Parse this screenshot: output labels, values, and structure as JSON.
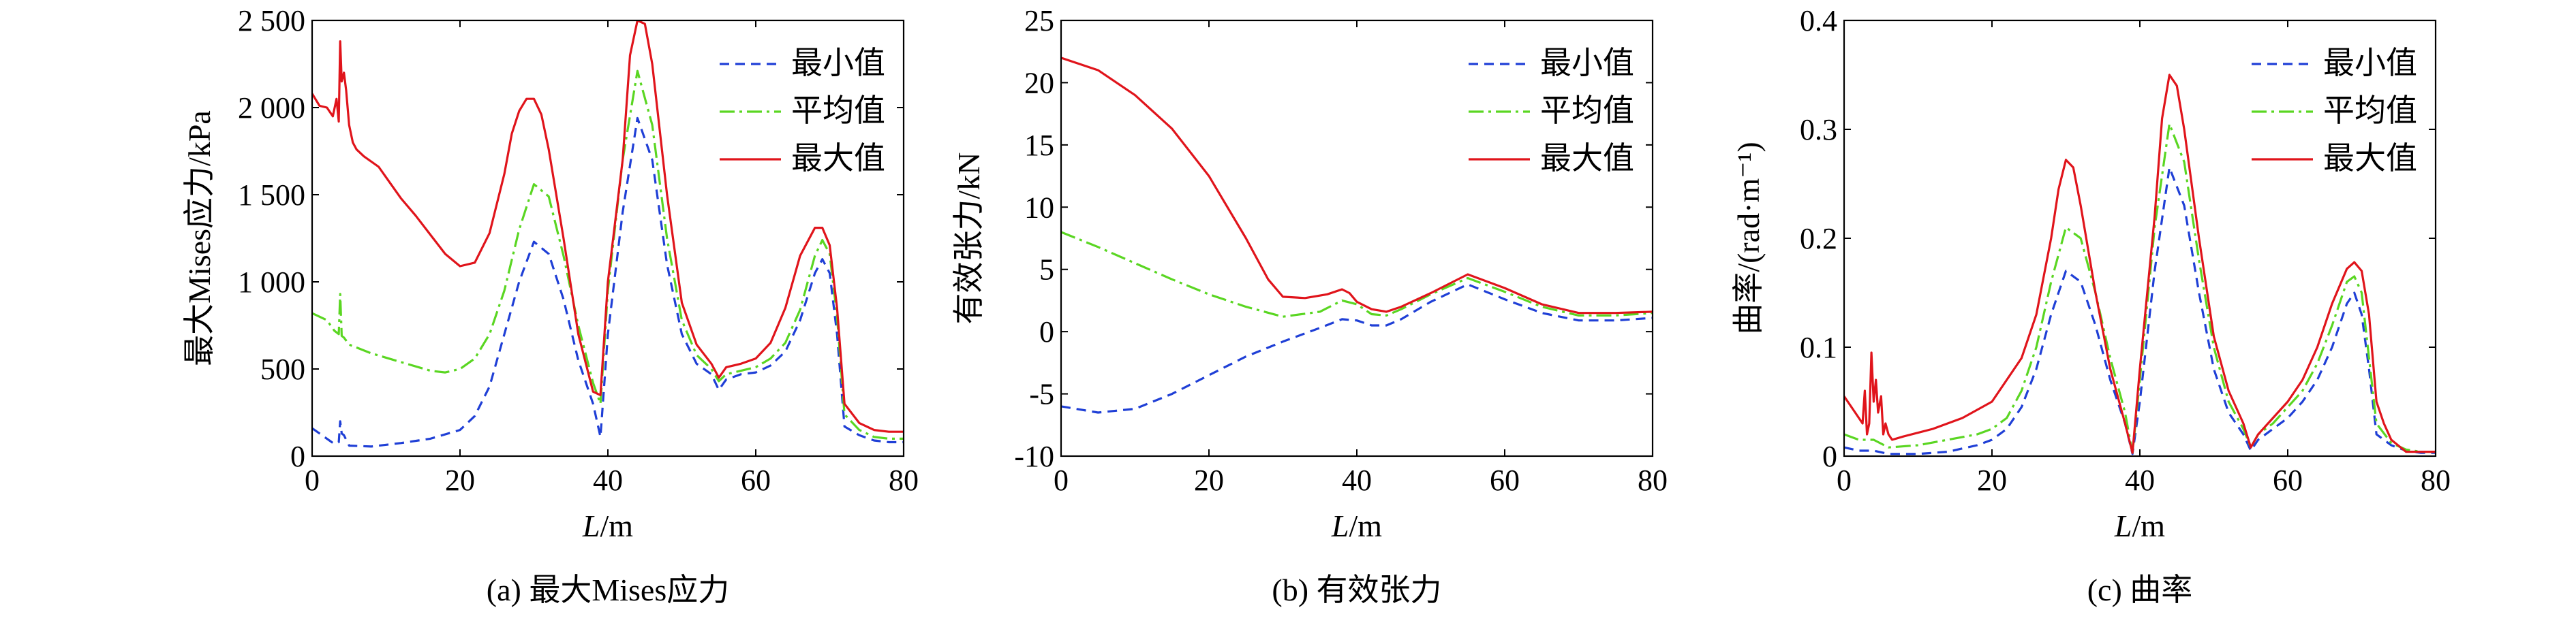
{
  "colors": {
    "min": "#1f3fd6",
    "avg": "#5ad622",
    "max": "#e0141b",
    "axis": "#000000"
  },
  "chart_data": [
    {
      "type": "line",
      "caption": "(a) 最大Mises应力",
      "xlabel_var": "L",
      "xlabel_unit": "/m",
      "ylabel": "最大Mises应力/kPa",
      "xlim": [
        0,
        80
      ],
      "ylim": [
        0,
        2500
      ],
      "xticks": [
        0,
        20,
        40,
        60,
        80
      ],
      "xtick_labels": [
        "0",
        "20",
        "40",
        "60",
        "80"
      ],
      "yticks": [
        0,
        500,
        1000,
        1500,
        2000,
        2500
      ],
      "ytick_labels": [
        "0",
        "500",
        "1 000",
        "1 500",
        "2 000",
        "2 500"
      ],
      "legend": [
        "最小值",
        "平均值",
        "最大值"
      ],
      "series": [
        {
          "name": "最小值",
          "style": "dashed",
          "color_key": "min",
          "x": [
            0,
            2,
            3,
            3.6,
            3.8,
            4.0,
            4.3,
            5,
            8,
            12,
            16,
            20,
            22,
            24,
            26,
            28,
            30,
            32,
            34,
            36,
            38,
            39,
            40,
            42,
            44,
            46,
            48,
            50,
            52,
            54,
            55,
            56,
            58,
            60,
            62,
            64,
            66,
            68,
            69,
            70,
            71,
            72,
            74,
            76,
            78,
            80
          ],
          "y": [
            160,
            100,
            70,
            80,
            200,
            130,
            120,
            60,
            55,
            75,
            100,
            150,
            230,
            400,
            700,
            1000,
            1230,
            1160,
            900,
            550,
            300,
            110,
            700,
            1400,
            1940,
            1700,
            1100,
            700,
            530,
            470,
            380,
            440,
            470,
            480,
            520,
            600,
            780,
            1050,
            1130,
            1050,
            700,
            170,
            120,
            90,
            80,
            80
          ]
        },
        {
          "name": "平均值",
          "style": "dashdot",
          "color_key": "avg",
          "x": [
            0,
            2,
            3,
            3.6,
            3.8,
            4.0,
            4.3,
            5,
            8,
            12,
            16,
            18,
            20,
            22,
            24,
            26,
            28,
            30,
            32,
            34,
            36,
            38,
            39,
            40,
            42,
            44,
            46,
            48,
            50,
            52,
            54,
            55,
            56,
            58,
            60,
            62,
            64,
            66,
            68,
            69,
            70,
            71,
            72,
            74,
            76,
            78,
            80
          ],
          "y": [
            820,
            780,
            720,
            700,
            930,
            690,
            680,
            640,
            590,
            540,
            490,
            480,
            500,
            560,
            700,
            950,
            1300,
            1560,
            1490,
            1150,
            750,
            420,
            300,
            950,
            1700,
            2210,
            1900,
            1250,
            780,
            580,
            500,
            430,
            470,
            490,
            510,
            560,
            650,
            840,
            1150,
            1240,
            1160,
            800,
            240,
            150,
            110,
            100,
            100
          ]
        },
        {
          "name": "最大值",
          "style": "solid",
          "color_key": "max",
          "x": [
            0,
            1,
            2,
            2.8,
            3.3,
            3.6,
            3.8,
            4.0,
            4.3,
            4.6,
            5,
            5.5,
            6,
            7,
            9,
            10,
            12,
            14,
            16,
            18,
            20,
            22,
            24,
            26,
            27,
            28,
            29,
            30,
            31,
            32,
            34,
            36,
            38,
            39,
            40,
            42,
            43,
            44,
            45,
            46,
            48,
            50,
            52,
            54,
            55,
            56,
            58,
            60,
            62,
            64,
            66,
            68,
            69,
            70,
            71,
            72,
            74,
            76,
            78,
            80
          ],
          "y": [
            2080,
            2010,
            2000,
            1950,
            2050,
            1920,
            2380,
            2150,
            2200,
            2100,
            1900,
            1800,
            1760,
            1720,
            1660,
            1600,
            1480,
            1380,
            1270,
            1160,
            1090,
            1110,
            1280,
            1620,
            1850,
            1980,
            2050,
            2050,
            1960,
            1760,
            1250,
            700,
            370,
            350,
            1000,
            1700,
            2300,
            2500,
            2480,
            2250,
            1500,
            880,
            640,
            530,
            450,
            510,
            530,
            560,
            650,
            850,
            1150,
            1310,
            1310,
            1210,
            850,
            300,
            190,
            150,
            140,
            140
          ]
        }
      ]
    },
    {
      "type": "line",
      "caption": "(b) 有效张力",
      "xlabel_var": "L",
      "xlabel_unit": "/m",
      "ylabel": "有效张力/kN",
      "xlim": [
        0,
        80
      ],
      "ylim": [
        -10,
        25
      ],
      "xticks": [
        0,
        20,
        40,
        60,
        80
      ],
      "xtick_labels": [
        "0",
        "20",
        "40",
        "60",
        "80"
      ],
      "yticks": [
        -10,
        -5,
        0,
        5,
        10,
        15,
        20,
        25
      ],
      "ytick_labels": [
        "-10",
        "-5",
        "0",
        "5",
        "10",
        "15",
        "20",
        "25"
      ],
      "legend": [
        "最小值",
        "平均值",
        "最大值"
      ],
      "series": [
        {
          "name": "最小值",
          "style": "dashed",
          "color_key": "min",
          "x": [
            0,
            5,
            10,
            15,
            20,
            25,
            30,
            35,
            38,
            40,
            42,
            44,
            46,
            50,
            55,
            60,
            65,
            70,
            75,
            80
          ],
          "y": [
            -6,
            -6.5,
            -6.2,
            -5,
            -3.5,
            -2,
            -0.8,
            0.3,
            1.0,
            0.9,
            0.5,
            0.5,
            1.0,
            2.4,
            3.8,
            2.6,
            1.5,
            0.9,
            0.9,
            1.1
          ]
        },
        {
          "name": "平均值",
          "style": "dashdot",
          "color_key": "avg",
          "x": [
            0,
            5,
            10,
            15,
            20,
            25,
            30,
            35,
            38,
            40,
            42,
            44,
            46,
            50,
            55,
            60,
            65,
            70,
            75,
            80
          ],
          "y": [
            8,
            6.8,
            5.5,
            4.2,
            3,
            2,
            1.2,
            1.6,
            2.5,
            2.2,
            1.4,
            1.3,
            1.8,
            3.0,
            4.3,
            3.2,
            2.0,
            1.3,
            1.3,
            1.5
          ]
        },
        {
          "name": "最大值",
          "style": "solid",
          "color_key": "max",
          "x": [
            0,
            5,
            10,
            15,
            20,
            25,
            28,
            30,
            33,
            36,
            38,
            39,
            40,
            42,
            44,
            46,
            50,
            55,
            60,
            65,
            70,
            75,
            80
          ],
          "y": [
            22,
            21,
            19,
            16.3,
            12.5,
            7.5,
            4.2,
            2.8,
            2.7,
            3.0,
            3.4,
            3.1,
            2.4,
            1.8,
            1.6,
            2.0,
            3.1,
            4.6,
            3.5,
            2.2,
            1.5,
            1.5,
            1.6
          ]
        }
      ]
    },
    {
      "type": "line",
      "caption": "(c) 曲率",
      "xlabel_var": "L",
      "xlabel_unit": "/m",
      "ylabel": "曲率/(rad·m⁻¹)",
      "xlim": [
        0,
        80
      ],
      "ylim": [
        0,
        0.4
      ],
      "xticks": [
        0,
        20,
        40,
        60,
        80
      ],
      "xtick_labels": [
        "0",
        "20",
        "40",
        "60",
        "80"
      ],
      "yticks": [
        0,
        0.1,
        0.2,
        0.3,
        0.4
      ],
      "ytick_labels": [
        "0",
        "0.1",
        "0.2",
        "0.3",
        "0.4"
      ],
      "legend": [
        "最小值",
        "平均值",
        "最大值"
      ],
      "series": [
        {
          "name": "最小值",
          "style": "dashed",
          "color_key": "min",
          "x": [
            0,
            2,
            4,
            6,
            10,
            14,
            18,
            20,
            22,
            24,
            26,
            28,
            30,
            32,
            34,
            36,
            38,
            39,
            40,
            42,
            44,
            46,
            48,
            50,
            52,
            54,
            55,
            56,
            58,
            60,
            62,
            64,
            66,
            68,
            69,
            70,
            71,
            72,
            74,
            76,
            78,
            80
          ],
          "y": [
            0.008,
            0.005,
            0.005,
            0.002,
            0.002,
            0.004,
            0.01,
            0.015,
            0.025,
            0.045,
            0.08,
            0.13,
            0.17,
            0.16,
            0.12,
            0.07,
            0.03,
            0.002,
            0.05,
            0.17,
            0.265,
            0.23,
            0.15,
            0.08,
            0.04,
            0.02,
            0.005,
            0.015,
            0.025,
            0.035,
            0.05,
            0.07,
            0.1,
            0.14,
            0.15,
            0.13,
            0.08,
            0.02,
            0.01,
            0.005,
            0.003,
            0.003
          ]
        },
        {
          "name": "平均值",
          "style": "dashdot",
          "color_key": "avg",
          "x": [
            0,
            2,
            4,
            6,
            10,
            14,
            18,
            20,
            22,
            24,
            26,
            28,
            30,
            32,
            34,
            36,
            38,
            39,
            40,
            42,
            44,
            46,
            48,
            50,
            52,
            54,
            55,
            56,
            58,
            60,
            62,
            64,
            66,
            68,
            69,
            70,
            71,
            72,
            74,
            76,
            78,
            80
          ],
          "y": [
            0.02,
            0.015,
            0.015,
            0.008,
            0.01,
            0.015,
            0.02,
            0.025,
            0.035,
            0.06,
            0.1,
            0.16,
            0.21,
            0.2,
            0.15,
            0.09,
            0.04,
            0.003,
            0.07,
            0.21,
            0.305,
            0.27,
            0.18,
            0.1,
            0.05,
            0.025,
            0.008,
            0.02,
            0.03,
            0.045,
            0.06,
            0.085,
            0.12,
            0.16,
            0.165,
            0.15,
            0.09,
            0.03,
            0.012,
            0.006,
            0.004,
            0.004
          ]
        },
        {
          "name": "最大值",
          "style": "solid",
          "color_key": "max",
          "x": [
            0,
            1.5,
            2.5,
            2.8,
            3.1,
            3.4,
            3.7,
            4,
            4.3,
            4.6,
            5,
            5.3,
            5.6,
            6,
            6.5,
            8,
            12,
            16,
            20,
            24,
            26,
            28,
            29,
            30,
            31,
            32,
            34,
            36,
            38,
            39,
            40,
            42,
            43,
            44,
            45,
            46,
            48,
            50,
            52,
            54,
            55,
            56,
            58,
            60,
            62,
            64,
            66,
            68,
            69,
            70,
            71,
            72,
            73,
            74,
            76,
            78,
            80
          ],
          "y": [
            0.055,
            0.04,
            0.03,
            0.06,
            0.02,
            0.03,
            0.095,
            0.05,
            0.07,
            0.04,
            0.055,
            0.02,
            0.03,
            0.02,
            0.015,
            0.018,
            0.025,
            0.035,
            0.05,
            0.09,
            0.13,
            0.2,
            0.245,
            0.272,
            0.265,
            0.23,
            0.15,
            0.08,
            0.03,
            0.003,
            0.08,
            0.22,
            0.31,
            0.35,
            0.34,
            0.3,
            0.2,
            0.11,
            0.06,
            0.03,
            0.008,
            0.02,
            0.035,
            0.05,
            0.07,
            0.1,
            0.14,
            0.172,
            0.178,
            0.17,
            0.13,
            0.05,
            0.03,
            0.015,
            0.004,
            0.004,
            0.004
          ]
        }
      ]
    }
  ]
}
